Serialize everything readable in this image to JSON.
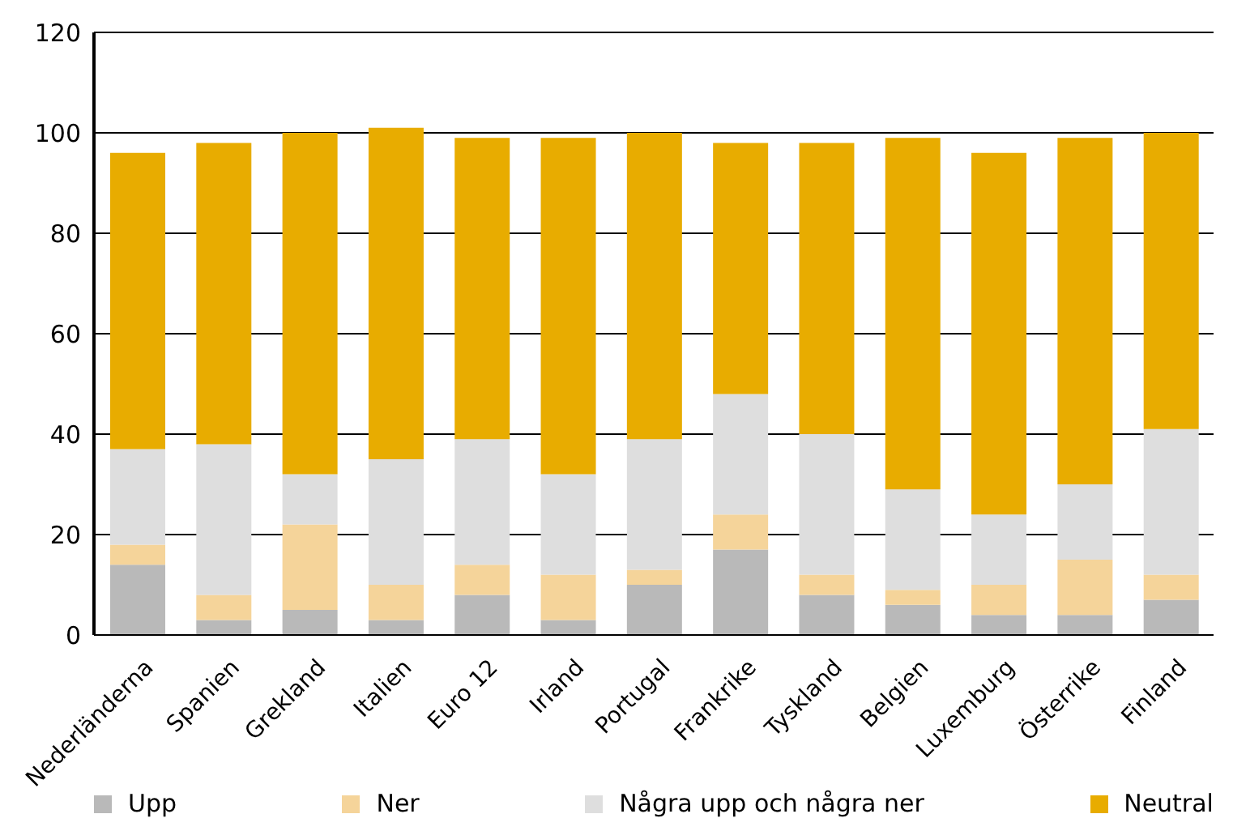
{
  "chart_data": {
    "type": "bar",
    "stacked": true,
    "categories": [
      "Nederländerna",
      "Spanien",
      "Grekland",
      "Italien",
      "Euro 12",
      "Irland",
      "Portugal",
      "Frankrike",
      "Tyskland",
      "Belgien",
      "Luxemburg",
      "Österrike",
      "Finland"
    ],
    "series": [
      {
        "name": "Upp",
        "color": "#b9b9b9",
        "values": [
          14,
          3,
          5,
          3,
          8,
          3,
          10,
          17,
          8,
          6,
          4,
          4,
          7
        ]
      },
      {
        "name": "Ner",
        "color": "#f5d49a",
        "values": [
          4,
          5,
          17,
          7,
          6,
          9,
          3,
          7,
          4,
          3,
          6,
          11,
          5
        ]
      },
      {
        "name": "Några upp och några ner",
        "color": "#dedede",
        "values": [
          19,
          30,
          10,
          25,
          25,
          20,
          26,
          24,
          28,
          20,
          14,
          15,
          29
        ]
      },
      {
        "name": "Neutral",
        "color": "#e8ac00",
        "values": [
          59,
          60,
          68,
          66,
          60,
          67,
          61,
          50,
          58,
          70,
          72,
          69,
          59
        ]
      }
    ],
    "ylim": [
      0,
      120
    ],
    "yticks": [
      0,
      20,
      40,
      60,
      80,
      100,
      120
    ],
    "grid": "y",
    "legend": "bottom"
  }
}
